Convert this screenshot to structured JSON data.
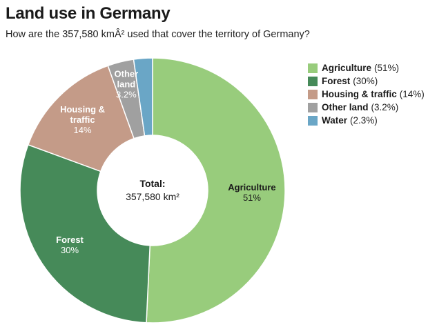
{
  "title": "Land use in Germany",
  "subtitle": "How are the 357,580 kmÂ² used that cover the territory of Germany?",
  "chart_data": {
    "type": "pie",
    "center_label": {
      "line1": "Total:",
      "line2": "357,580 km²"
    },
    "slices": [
      {
        "name": "Agriculture",
        "value": 51,
        "display": "51%",
        "legend_pct": "(51%)",
        "color": "#98cc7c",
        "inner_label": [
          "Agriculture"
        ],
        "inner_value": "51%",
        "label_color": "#1a1a1a"
      },
      {
        "name": "Forest",
        "value": 30,
        "display": "30%",
        "legend_pct": "(30%)",
        "color": "#468a59",
        "inner_label": [
          "Forest"
        ],
        "inner_value": "30%",
        "label_color": "#ffffff"
      },
      {
        "name": "Housing & traffic",
        "value": 14,
        "display": "14%",
        "legend_pct": "(14%)",
        "color": "#c49b88",
        "inner_label": [
          "Housing &",
          "traffic"
        ],
        "inner_value": "14%",
        "label_color": "#ffffff"
      },
      {
        "name": "Other land",
        "value": 3.2,
        "display": "3.2%",
        "legend_pct": "(3.2%)",
        "color": "#a0a0a0",
        "inner_label": [
          "Other",
          "land"
        ],
        "inner_value": "3.2%",
        "label_color": "#ffffff"
      },
      {
        "name": "Water",
        "value": 2.3,
        "display": "2.3%",
        "legend_pct": "(2.3%)",
        "color": "#6aa6c6",
        "inner_label": [],
        "inner_value": "",
        "label_color": "#ffffff"
      }
    ]
  }
}
